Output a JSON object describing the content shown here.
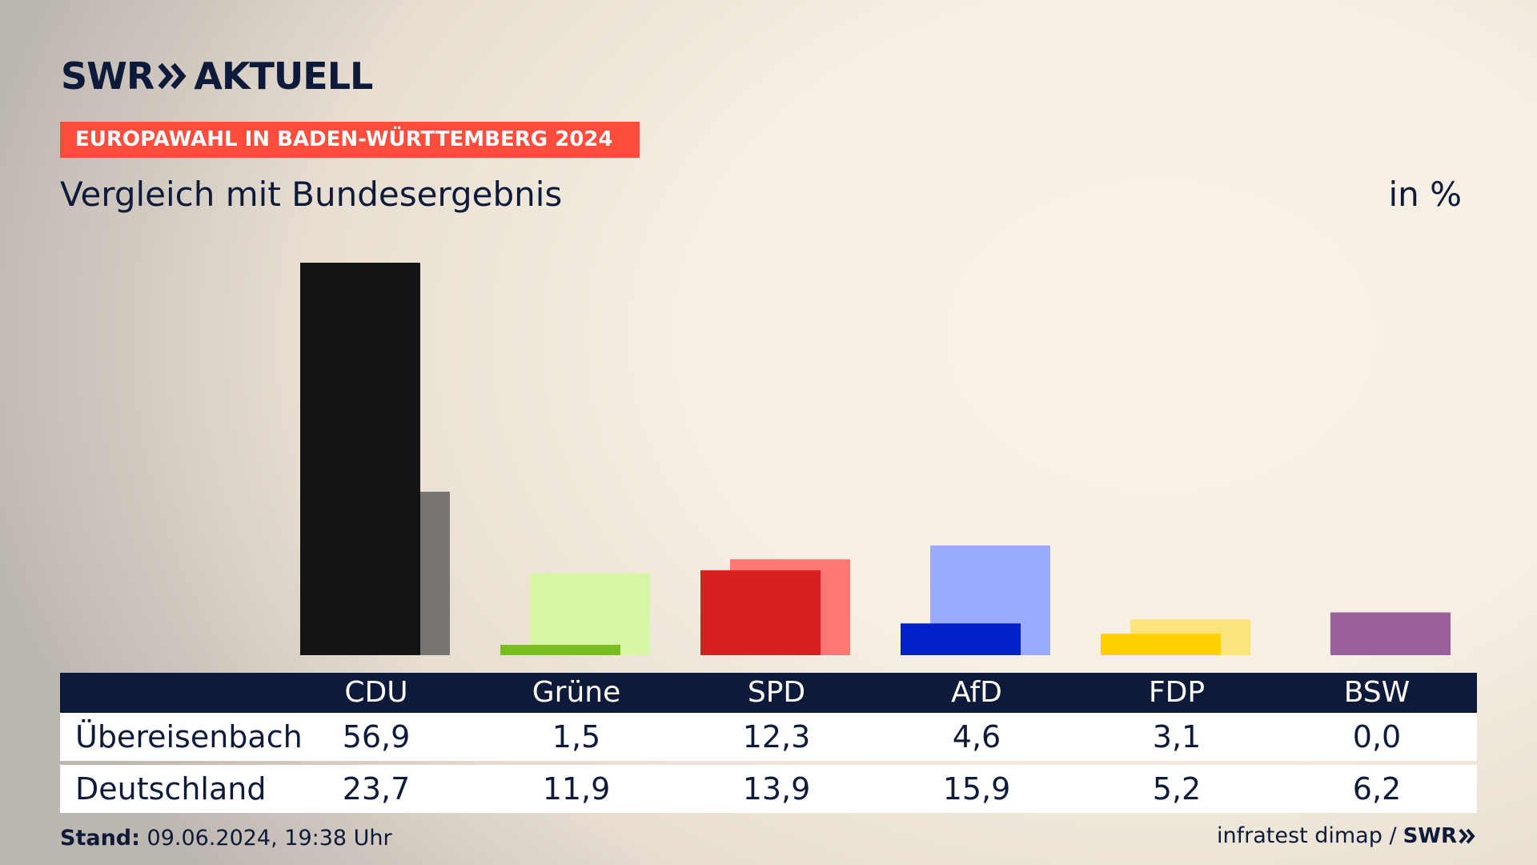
{
  "brand": {
    "logo_left": "SWR",
    "logo_right": "AKTUELL"
  },
  "topic": "EUROPAWAHL IN BADEN-WÜRTTEMBERG 2024",
  "subtitle": "Vergleich mit Bundesergebnis",
  "unit": "in %",
  "footer": {
    "stand_label": "Stand:",
    "stand_value": "09.06.2024, 19:38 Uhr",
    "source": "infratest dimap /",
    "source_logo": "SWR"
  },
  "table": {
    "headers": [
      "CDU",
      "Grüne",
      "SPD",
      "AfD",
      "FDP",
      "BSW"
    ],
    "rows": [
      {
        "label": "Übereisenbach",
        "values": [
          "56,9",
          "1,5",
          "12,3",
          "4,6",
          "3,1",
          "0,0"
        ]
      },
      {
        "label": "Deutschland",
        "values": [
          "23,7",
          "11,9",
          "13,9",
          "15,9",
          "5,2",
          "6,2"
        ]
      }
    ]
  },
  "chart_data": {
    "type": "bar",
    "categories": [
      "CDU",
      "Grüne",
      "SPD",
      "AfD",
      "FDP",
      "BSW"
    ],
    "series": [
      {
        "name": "Übereisenbach",
        "values": [
          56.9,
          1.5,
          12.3,
          4.6,
          3.1,
          0.0
        ],
        "colors": [
          "#141414",
          "#78be20",
          "#d71f1f",
          "#0021c8",
          "#ffd000",
          "#9b5f9b"
        ]
      },
      {
        "name": "Deutschland",
        "values": [
          23.7,
          11.9,
          13.9,
          15.9,
          5.2,
          6.2
        ],
        "colors": [
          "#787572",
          "#d7f6a6",
          "#ff7772",
          "#9aaaff",
          "#fbe57a",
          "#9b5f9b"
        ]
      }
    ],
    "ylim": [
      0,
      56.9
    ],
    "grid": false
  }
}
